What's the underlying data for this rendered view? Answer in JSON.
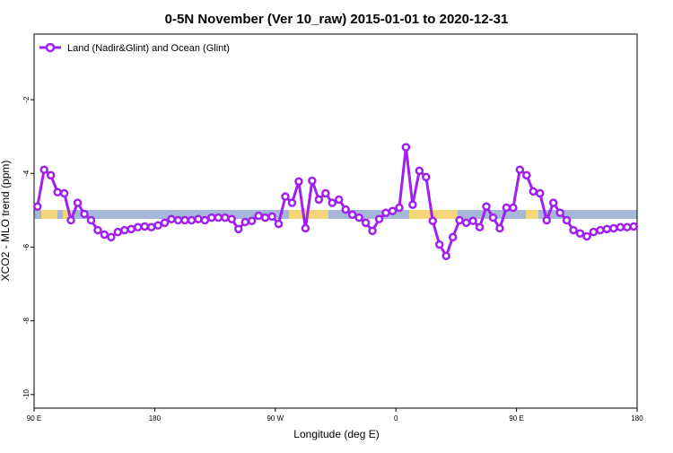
{
  "chart_data": {
    "type": "line",
    "title": "0-5N November (Ver 10_raw)   2015-01-01 to 2020-12-31",
    "xlabel": "Longitude (deg E)",
    "ylabel": "XCO2 - MLO trend (ppm)",
    "xlim": [
      90,
      540
    ],
    "ylim": [
      -10.37,
      -0.22
    ],
    "xticks": [
      {
        "value": 90,
        "label": "90 E"
      },
      {
        "value": 180,
        "label": "180"
      },
      {
        "value": 270,
        "label": "90 W"
      },
      {
        "value": 360,
        "label": "0"
      },
      {
        "value": 450,
        "label": "90 E"
      },
      {
        "value": 540,
        "label": "180"
      }
    ],
    "yticks": [
      -2,
      -4,
      -6,
      -8,
      -10
    ],
    "legend": "top-left",
    "x": [
      92.5,
      97.5,
      102.5,
      107.5,
      112.5,
      117.5,
      122.5,
      127.5,
      132.5,
      137.5,
      142.5,
      147.5,
      152.5,
      157.5,
      162.5,
      167.5,
      172.5,
      177.5,
      182.5,
      187.5,
      192.5,
      197.5,
      202.5,
      207.5,
      212.5,
      217.5,
      222.5,
      227.5,
      232.5,
      237.5,
      242.5,
      247.5,
      252.5,
      257.5,
      262.5,
      267.5,
      272.5,
      277.5,
      282.5,
      287.5,
      292.5,
      297.5,
      302.5,
      307.5,
      312.5,
      317.5,
      322.5,
      327.5,
      332.5,
      337.5,
      342.5,
      347.5,
      352.5,
      357.5,
      362.5,
      367.5,
      372.5,
      377.5,
      382.5,
      387.5,
      392.5,
      397.5,
      402.5,
      407.5,
      412.5,
      417.5,
      422.5,
      427.5,
      432.5,
      437.5,
      442.5,
      447.5,
      452.5,
      457.5,
      462.5,
      467.5,
      472.5,
      477.5,
      482.5,
      487.5,
      492.5,
      497.5,
      502.5,
      507.5,
      512.5,
      517.5,
      522.5,
      527.5,
      532.5,
      537.5
    ],
    "series": [
      {
        "name": "Land (Nadir&Glint) and Ocean (Glint)",
        "color": "#a020f0",
        "values": [
          -4.9,
          -3.9,
          -4.05,
          -4.51,
          -4.54,
          -5.27,
          -4.8,
          -5.1,
          -5.27,
          -5.54,
          -5.66,
          -5.73,
          -5.59,
          -5.54,
          -5.51,
          -5.46,
          -5.44,
          -5.46,
          -5.41,
          -5.34,
          -5.24,
          -5.27,
          -5.27,
          -5.27,
          -5.24,
          -5.27,
          -5.2,
          -5.2,
          -5.2,
          -5.24,
          -5.51,
          -5.32,
          -5.29,
          -5.15,
          -5.2,
          -5.17,
          -5.37,
          -4.63,
          -4.8,
          -4.22,
          -5.49,
          -4.2,
          -4.71,
          -4.54,
          -4.8,
          -4.71,
          -4.98,
          -5.12,
          -5.2,
          -5.34,
          -5.56,
          -5.24,
          -5.07,
          -5.02,
          -4.93,
          -3.29,
          -4.85,
          -3.93,
          -4.1,
          -5.29,
          -5.93,
          -6.24,
          -5.73,
          -5.27,
          -5.34,
          -5.29,
          -5.46,
          -4.9,
          -5.2,
          -5.49,
          -4.93,
          -4.93,
          -3.9,
          -4.05,
          -4.49,
          -4.54,
          -5.27,
          -4.8,
          -5.07,
          -5.27,
          -5.54,
          -5.63,
          -5.71,
          -5.59,
          -5.54,
          -5.51,
          -5.49,
          -5.46,
          -5.46,
          -5.44
        ]
      }
    ]
  }
}
